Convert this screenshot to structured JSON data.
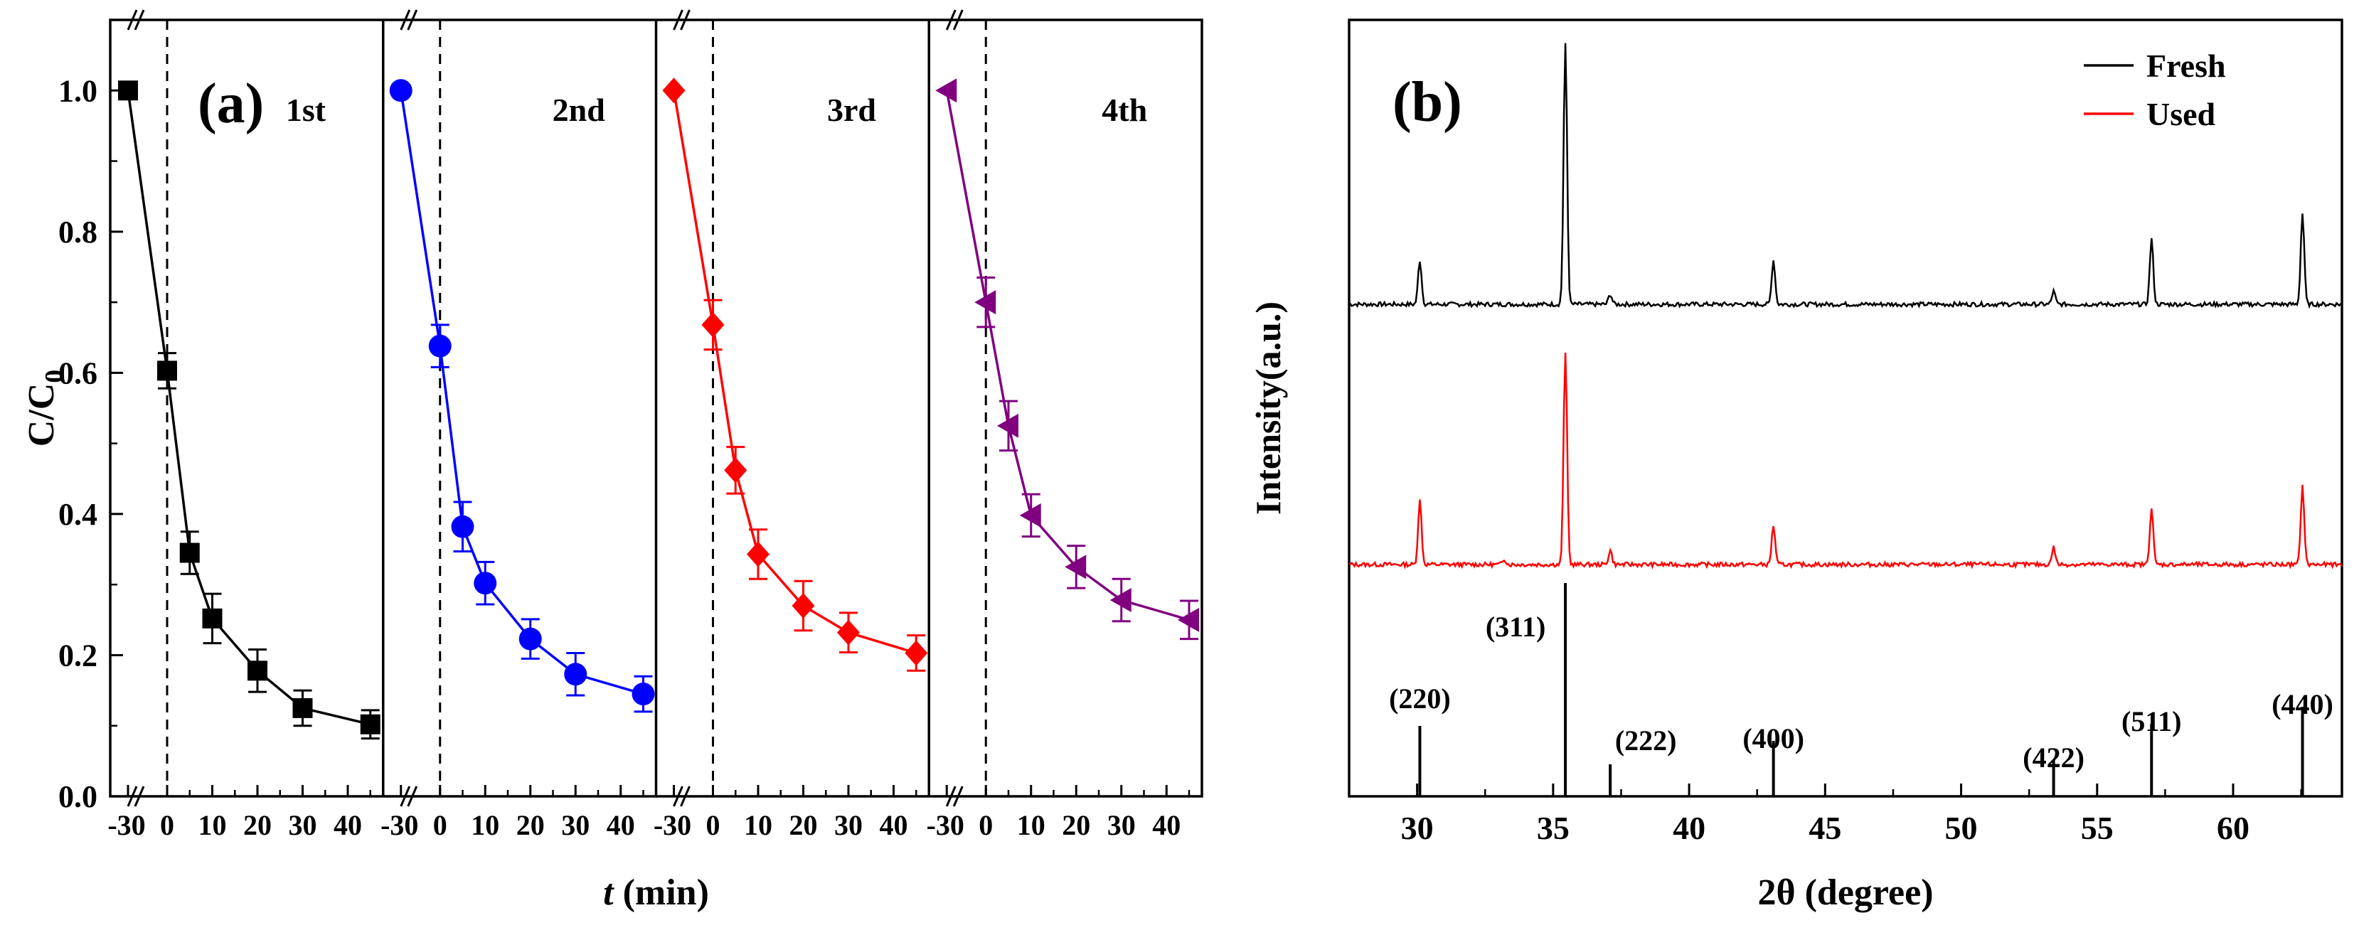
{
  "chart_data": [
    {
      "panel_label": "(a)",
      "type": "line",
      "xlabel_italic": "t",
      "xlabel_rest": " (min)",
      "ylabel_main": "C/C",
      "ylabel_sub": "0",
      "ylim": [
        0.0,
        1.1
      ],
      "yticks": [
        0.0,
        0.2,
        0.4,
        0.6,
        0.8,
        1.0
      ],
      "ytick_labels": [
        "0.0",
        "0.2",
        "0.4",
        "0.6",
        "0.8",
        "1.0"
      ],
      "xticks": [
        -30,
        0,
        10,
        20,
        30,
        40
      ],
      "xtick_labels": [
        "-30",
        "0",
        "10",
        "20",
        "30",
        "40"
      ],
      "series": [
        {
          "name": "1st",
          "color": "#000000",
          "marker": "square",
          "x": [
            -30,
            0,
            5,
            10,
            20,
            30,
            45
          ],
          "y": [
            1.0,
            0.603,
            0.345,
            0.252,
            0.178,
            0.125,
            0.102
          ],
          "err": [
            0,
            0.025,
            0.03,
            0.035,
            0.03,
            0.025,
            0.02
          ]
        },
        {
          "name": "2nd",
          "color": "#0000ff",
          "marker": "circle",
          "x": [
            -30,
            0,
            5,
            10,
            20,
            30,
            45
          ],
          "y": [
            1.0,
            0.638,
            0.382,
            0.302,
            0.223,
            0.173,
            0.145
          ],
          "err": [
            0,
            0.03,
            0.035,
            0.03,
            0.028,
            0.03,
            0.025
          ]
        },
        {
          "name": "3rd",
          "color": "#ff0000",
          "marker": "diamond",
          "x": [
            -30,
            0,
            5,
            10,
            20,
            30,
            45
          ],
          "y": [
            1.0,
            0.668,
            0.462,
            0.343,
            0.27,
            0.232,
            0.203
          ],
          "err": [
            0,
            0.035,
            0.033,
            0.035,
            0.035,
            0.028,
            0.025
          ]
        },
        {
          "name": "4th",
          "color": "#800080",
          "marker": "triangle-left",
          "x": [
            -30,
            0,
            5,
            10,
            20,
            30,
            45
          ],
          "y": [
            1.0,
            0.7,
            0.525,
            0.398,
            0.325,
            0.278,
            0.25
          ],
          "err": [
            0,
            0.035,
            0.035,
            0.03,
            0.03,
            0.03,
            0.027
          ]
        }
      ]
    },
    {
      "panel_label": "(b)",
      "type": "line",
      "xlabel": "2θ (degree)",
      "ylabel": "Intensity(a.u.)",
      "xlim": [
        27.5,
        64
      ],
      "xticks": [
        30,
        35,
        40,
        45,
        50,
        55,
        60
      ],
      "xtick_labels": [
        "30",
        "35",
        "40",
        "45",
        "50",
        "55",
        "60"
      ],
      "legend": [
        {
          "name": "Fresh",
          "color": "#000000"
        },
        {
          "name": "Used",
          "color": "#ff0000"
        }
      ],
      "peaks_2theta": [
        30.1,
        33.2,
        35.45,
        37.1,
        43.1,
        53.4,
        57.0,
        62.55
      ],
      "fresh_intensity": [
        62,
        0,
        365,
        14,
        62,
        18,
        92,
        128
      ],
      "used_intensity": [
        90,
        8,
        300,
        20,
        55,
        24,
        80,
        110
      ],
      "reference": {
        "positions": [
          30.1,
          35.45,
          37.1,
          43.1,
          53.4,
          57.0,
          62.55
        ],
        "heights": [
          33,
          100,
          15,
          26,
          17,
          34,
          42
        ],
        "labels": [
          "(220)",
          "(311)",
          "(222)",
          "(400)",
          "(422)",
          "(511)",
          "(440)"
        ]
      }
    }
  ]
}
